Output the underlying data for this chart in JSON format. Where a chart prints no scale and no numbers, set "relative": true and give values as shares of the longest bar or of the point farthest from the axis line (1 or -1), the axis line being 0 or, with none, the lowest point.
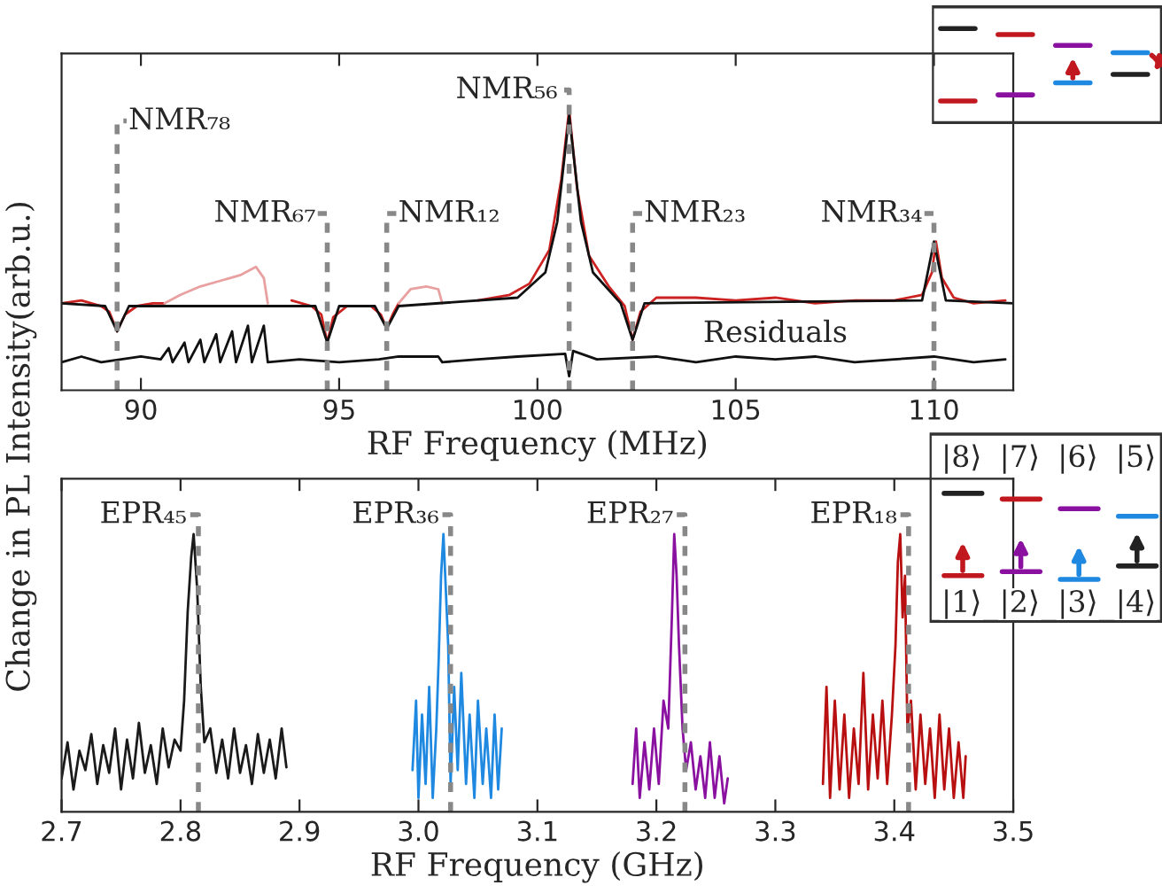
{
  "chart_data": [
    {
      "type": "line",
      "relative": true,
      "xlabel": "RF Frequency (MHz)",
      "ylabel": "Change in PL Intensity(arb.u.)",
      "xlim": [
        88,
        112
      ],
      "xticks": [
        90,
        95,
        100,
        105,
        110
      ],
      "tick_labels": "x",
      "grid": false,
      "legend": false,
      "series": [
        {
          "color": "#cc2222",
          "x": [
            88.0,
            88.5,
            89.0,
            89.2,
            89.4,
            89.6,
            89.9,
            90.3,
            90.6,
            93.2,
            93.8,
            94.3,
            94.55,
            94.7,
            94.85,
            95.2,
            95.8,
            96.05,
            96.2,
            96.35,
            96.5,
            97.6,
            98.5,
            99.3,
            99.8,
            100.3,
            100.6,
            100.8,
            101.0,
            101.3,
            101.8,
            102.2,
            102.4,
            102.6,
            103.0,
            104.0,
            105.0,
            106.0,
            107.0,
            108.0,
            109.0,
            109.7,
            109.95,
            110.05,
            110.2,
            110.5,
            111.0,
            111.8
          ],
          "values": [
            0.31,
            0.32,
            0.3,
            0.28,
            0.21,
            0.27,
            0.3,
            0.31,
            0.31,
            null,
            0.32,
            0.3,
            0.27,
            0.17,
            0.26,
            0.3,
            0.3,
            0.27,
            0.22,
            0.27,
            0.31,
            null,
            0.32,
            0.34,
            0.38,
            0.5,
            0.75,
            1.0,
            0.72,
            0.48,
            0.37,
            0.3,
            0.18,
            0.28,
            0.33,
            0.33,
            0.32,
            0.33,
            0.31,
            0.32,
            0.32,
            0.34,
            0.42,
            0.53,
            0.4,
            0.33,
            0.31,
            0.32
          ]
        },
        {
          "color": "#e8a0a0",
          "x": [
            90.6,
            91.0,
            91.5,
            92.0,
            92.5,
            92.9,
            93.1,
            93.2,
            94.0,
            96.5,
            96.8,
            97.2,
            97.5,
            97.6
          ],
          "values": [
            0.31,
            0.34,
            0.37,
            0.39,
            0.41,
            0.44,
            0.4,
            0.31,
            null,
            0.31,
            0.36,
            0.37,
            0.36,
            0.31
          ]
        },
        {
          "color": "#111111",
          "x": [
            88.0,
            89.1,
            89.4,
            89.7,
            94.4,
            94.7,
            95.0,
            95.9,
            96.2,
            96.5,
            99.5,
            100.2,
            100.5,
            100.8,
            101.1,
            101.4,
            102.1,
            102.4,
            102.7,
            109.7,
            110.0,
            110.3,
            112.0
          ],
          "values": [
            0.31,
            0.3,
            0.21,
            0.3,
            0.3,
            0.17,
            0.3,
            0.3,
            0.22,
            0.3,
            0.33,
            0.42,
            0.6,
            0.98,
            0.6,
            0.42,
            0.31,
            0.18,
            0.31,
            0.32,
            0.53,
            0.32,
            0.31
          ]
        },
        {
          "name": "Residuals",
          "color": "#111111",
          "x": [
            88.0,
            88.5,
            89.0,
            89.5,
            90.0,
            90.5,
            90.7,
            90.8,
            91.1,
            91.2,
            91.5,
            91.6,
            91.9,
            92.0,
            92.3,
            92.4,
            92.7,
            92.8,
            93.1,
            93.2,
            94.0,
            95.0,
            96.0,
            96.5,
            97.5,
            97.6,
            98.5,
            99.5,
            100.7,
            100.8,
            100.9,
            101.5,
            103.0,
            104.0,
            105.0,
            106.0,
            107.0,
            108.0,
            109.0,
            110.0,
            111.0,
            111.8
          ],
          "values": [
            0.1,
            0.12,
            0.1,
            0.11,
            0.12,
            0.11,
            0.15,
            0.1,
            0.17,
            0.1,
            0.18,
            0.1,
            0.2,
            0.1,
            0.21,
            0.1,
            0.23,
            0.1,
            0.23,
            0.1,
            0.11,
            0.1,
            0.11,
            0.12,
            0.12,
            0.1,
            0.11,
            0.12,
            0.13,
            0.05,
            0.14,
            0.11,
            0.12,
            0.1,
            0.12,
            0.11,
            0.12,
            0.1,
            0.11,
            0.12,
            0.1,
            0.11
          ]
        }
      ],
      "ref_lines": [
        {
          "axis": "x",
          "value": 89.4,
          "label": "NMR₇₈",
          "color": "#888888",
          "line_style": "dashed"
        },
        {
          "axis": "x",
          "value": 94.7,
          "label": "NMR₆₇",
          "color": "#888888",
          "line_style": "dashed"
        },
        {
          "axis": "x",
          "value": 96.2,
          "label": "NMR₁₂",
          "color": "#888888",
          "line_style": "dashed"
        },
        {
          "axis": "x",
          "value": 100.8,
          "label": "NMR₅₆",
          "color": "#888888",
          "line_style": "dashed"
        },
        {
          "axis": "x",
          "value": 102.4,
          "label": "NMR₂₃",
          "color": "#888888",
          "line_style": "dashed"
        },
        {
          "axis": "x",
          "value": 110.0,
          "label": "NMR₃₄",
          "color": "#888888",
          "line_style": "dashed"
        }
      ]
    },
    {
      "type": "line",
      "relative": true,
      "xlabel": "RF Frequency (GHz)",
      "xlim": [
        2.7,
        3.5
      ],
      "xticks": [
        2.7,
        2.8,
        2.9,
        {
          "value": 3.0,
          "label": "3.0"
        },
        3.1,
        3.2,
        3.3,
        3.4,
        3.5
      ],
      "tick_labels": "x",
      "grid": false,
      "legend": false,
      "series": [
        {
          "color": "#1a1a1a",
          "x": [
            2.7,
            2.705,
            2.71,
            2.715,
            2.72,
            2.725,
            2.73,
            2.735,
            2.74,
            2.745,
            2.75,
            2.755,
            2.76,
            2.765,
            2.77,
            2.775,
            2.78,
            2.785,
            2.79,
            2.795,
            2.8,
            2.803,
            2.806,
            2.809,
            2.811,
            2.814,
            2.817,
            2.82,
            2.825,
            2.83,
            2.835,
            2.84,
            2.845,
            2.85,
            2.855,
            2.86,
            2.865,
            2.87,
            2.875,
            2.88,
            2.885,
            2.889
          ],
          "values": [
            0.12,
            0.25,
            0.08,
            0.22,
            0.15,
            0.28,
            0.1,
            0.24,
            0.14,
            0.3,
            0.08,
            0.26,
            0.12,
            0.32,
            0.14,
            0.24,
            0.1,
            0.3,
            0.16,
            0.26,
            0.22,
            0.4,
            0.72,
            0.92,
            1.0,
            0.8,
            0.45,
            0.25,
            0.3,
            0.14,
            0.26,
            0.12,
            0.3,
            0.14,
            0.24,
            0.1,
            0.28,
            0.14,
            0.26,
            0.12,
            0.3,
            0.16
          ]
        },
        {
          "color": "#1f88e0",
          "x": [
            2.995,
            2.998,
            3.0,
            3.003,
            3.006,
            3.009,
            3.012,
            3.015,
            3.017,
            3.019,
            3.021,
            3.023,
            3.025,
            3.027,
            3.03,
            3.033,
            3.036,
            3.04,
            3.043,
            3.047,
            3.05,
            3.054,
            3.057,
            3.061,
            3.064,
            3.067,
            3.07
          ],
          "values": [
            0.15,
            0.4,
            0.05,
            0.35,
            0.1,
            0.45,
            0.05,
            0.3,
            0.55,
            0.85,
            1.0,
            0.8,
            0.6,
            0.1,
            0.45,
            0.15,
            0.5,
            0.1,
            0.35,
            0.05,
            0.4,
            0.1,
            0.3,
            0.05,
            0.35,
            0.08,
            0.3
          ]
        },
        {
          "color": "#8a10a0",
          "x": [
            3.18,
            3.183,
            3.186,
            3.19,
            3.194,
            3.198,
            3.202,
            3.206,
            3.21,
            3.213,
            3.215,
            3.217,
            3.219,
            3.222,
            3.225,
            3.229,
            3.233,
            3.237,
            3.241,
            3.245,
            3.249,
            3.253,
            3.257,
            3.26
          ],
          "values": [
            0.1,
            0.3,
            0.05,
            0.25,
            0.08,
            0.3,
            0.1,
            0.4,
            0.3,
            0.7,
            1.0,
            0.85,
            0.6,
            0.3,
            0.15,
            0.25,
            0.08,
            0.2,
            0.05,
            0.25,
            0.05,
            0.2,
            0.03,
            0.12
          ]
        },
        {
          "color": "#b81010",
          "x": [
            3.34,
            3.343,
            3.346,
            3.35,
            3.354,
            3.358,
            3.362,
            3.366,
            3.37,
            3.374,
            3.378,
            3.382,
            3.386,
            3.39,
            3.394,
            3.398,
            3.401,
            3.403,
            3.405,
            3.407,
            3.409,
            3.411,
            3.414,
            3.418,
            3.422,
            3.426,
            3.43,
            3.434,
            3.438,
            3.442,
            3.446,
            3.45,
            3.454,
            3.458,
            3.46
          ],
          "values": [
            0.1,
            0.45,
            0.05,
            0.4,
            0.08,
            0.35,
            0.05,
            0.3,
            0.1,
            0.5,
            0.08,
            0.35,
            0.12,
            0.4,
            0.1,
            0.35,
            0.6,
            0.9,
            1.0,
            0.7,
            0.85,
            0.3,
            0.4,
            0.08,
            0.35,
            0.1,
            0.3,
            0.05,
            0.35,
            0.08,
            0.3,
            0.05,
            0.25,
            0.05,
            0.2
          ]
        }
      ],
      "ref_lines": [
        {
          "axis": "x",
          "value": 2.815,
          "label": "EPR₄₅",
          "color": "#888888",
          "line_style": "dashed"
        },
        {
          "axis": "x",
          "value": 3.027,
          "label": "EPR₃₆",
          "color": "#888888",
          "line_style": "dashed"
        },
        {
          "axis": "x",
          "value": 3.224,
          "label": "EPR₂₇",
          "color": "#888888",
          "line_style": "dashed"
        },
        {
          "axis": "x",
          "value": 3.412,
          "label": "EPR₁₈",
          "color": "#888888",
          "line_style": "dashed"
        }
      ],
      "annotations": [
        "|8⟩",
        "|7⟩",
        "|6⟩",
        "|5⟩",
        "|1⟩",
        "|2⟩",
        "|3⟩",
        "|4⟩"
      ]
    }
  ]
}
